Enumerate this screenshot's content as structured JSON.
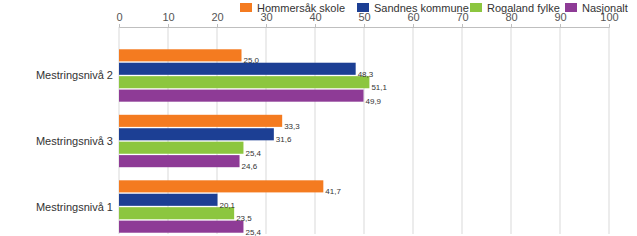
{
  "chart_data": {
    "type": "bar",
    "orientation": "horizontal",
    "categories": [
      "Mestringsnivå 2",
      "Mestringsnivå 3",
      "Mestringsnivå 1"
    ],
    "series": [
      {
        "name": "Hommersåk skole",
        "color": "#f47b20",
        "values": [
          25.0,
          33.3,
          41.7
        ],
        "value_labels": [
          "25,0",
          "33,3",
          "41,7"
        ]
      },
      {
        "name": "Sandnes kommune",
        "color": "#1c3f94",
        "values": [
          48.3,
          31.6,
          20.1
        ],
        "value_labels": [
          "48,3",
          "31,6",
          "20,1"
        ]
      },
      {
        "name": "Rogaland fylke",
        "color": "#8cc63f",
        "values": [
          51.1,
          25.4,
          23.5
        ],
        "value_labels": [
          "51,1",
          "25,4",
          "23,5"
        ]
      },
      {
        "name": "Nasjonalt",
        "color": "#8e3b96",
        "values": [
          49.9,
          24.6,
          25.4
        ],
        "value_labels": [
          "49,9",
          "24,6",
          "25,4"
        ]
      }
    ],
    "xlim": [
      0,
      100
    ],
    "xticks": [
      0,
      10,
      20,
      30,
      40,
      50,
      60,
      70,
      80,
      90,
      100
    ],
    "grid": true,
    "legend": "top",
    "data_labels": true
  }
}
